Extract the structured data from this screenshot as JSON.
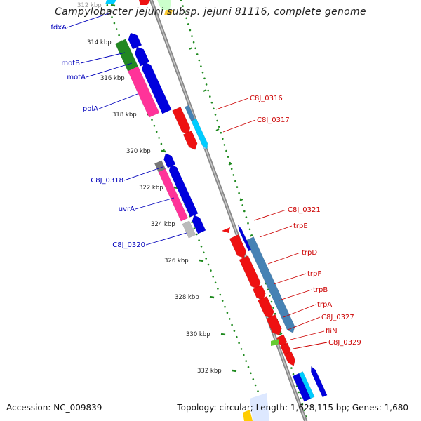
{
  "title": "Campylobacter jejuni subsp. jejuni 81116, complete genome",
  "accession_label": "Accession: NC_009839",
  "topology_label": "Topology: circular; Length: 1,628,115 bp; Genes: 1,680",
  "ruler": {
    "labels": [
      "312 kbp",
      "314 kbp",
      "316 kbp",
      "318 kbp",
      "320 kbp",
      "322 kbp",
      "324 kbp",
      "326 kbp",
      "328 kbp",
      "330 kbp",
      "332 kbp"
    ]
  },
  "left_gene_labels": [
    "fdxA",
    "motB",
    "motA",
    "polA",
    "C8J_0318",
    "uvrA",
    "C8J_0320"
  ],
  "right_gene_labels": [
    "C8J_0316",
    "C8J_0317",
    "C8J_0321",
    "trpE",
    "trpD",
    "trpF",
    "trpB",
    "trpA",
    "C8J_0327",
    "fliN",
    "C8J_0329"
  ],
  "colors": {
    "forward_strand": "#0000dd",
    "reverse_strand": "#ee1111",
    "magenta": "#ff3399",
    "green": "#228822",
    "cyan": "#00ccff",
    "steel": "#4682b4",
    "gray": "#777777",
    "lightgray": "#bbbbbb",
    "ruler_tick": "#1f8a1f",
    "backbone": "#888888",
    "left_label": "#0000bb",
    "right_label": "#cc0000"
  }
}
